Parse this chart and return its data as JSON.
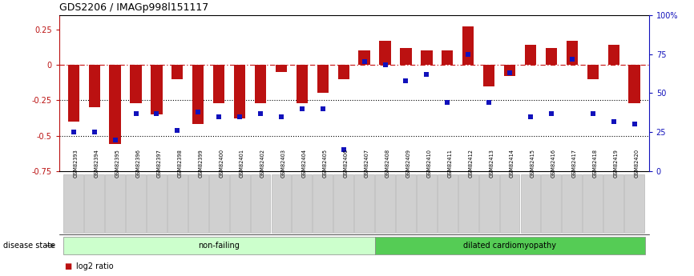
{
  "title": "GDS2206 / IMAGp998l151117",
  "categories": [
    "GSM82393",
    "GSM82394",
    "GSM82395",
    "GSM82396",
    "GSM82397",
    "GSM82398",
    "GSM82399",
    "GSM82400",
    "GSM82401",
    "GSM82402",
    "GSM82403",
    "GSM82404",
    "GSM82405",
    "GSM82406",
    "GSM82407",
    "GSM82408",
    "GSM82409",
    "GSM82410",
    "GSM82411",
    "GSM82412",
    "GSM82413",
    "GSM82414",
    "GSM82415",
    "GSM82416",
    "GSM82417",
    "GSM82418",
    "GSM82419",
    "GSM82420"
  ],
  "log2_ratio": [
    -0.4,
    -0.3,
    -0.56,
    -0.27,
    -0.35,
    -0.1,
    -0.42,
    -0.27,
    -0.38,
    -0.27,
    -0.05,
    -0.27,
    -0.2,
    -0.1,
    0.1,
    0.17,
    0.12,
    0.1,
    0.1,
    0.27,
    -0.15,
    -0.08,
    0.14,
    0.12,
    0.17,
    -0.1,
    0.14,
    -0.27
  ],
  "percentile": [
    25,
    25,
    20,
    37,
    37,
    26,
    38,
    35,
    35,
    37,
    35,
    40,
    40,
    14,
    70,
    68,
    58,
    62,
    44,
    75,
    44,
    63,
    35,
    37,
    72,
    37,
    32,
    30
  ],
  "non_failing_count": 15,
  "dilated_count": 13,
  "ylim_left": [
    -0.75,
    0.35
  ],
  "ylim_right": [
    0,
    100
  ],
  "yticks_left": [
    -0.75,
    -0.5,
    -0.25,
    0,
    0.25
  ],
  "yticks_right": [
    0,
    25,
    50,
    75,
    100
  ],
  "bar_color": "#bb1111",
  "dot_color": "#1111bb",
  "nonfailing_color": "#ccffcc",
  "dilated_color": "#55cc55",
  "ref_line_color": "#cc2222",
  "bg_color": "#ffffff",
  "label_bg": "#d0d0d0"
}
